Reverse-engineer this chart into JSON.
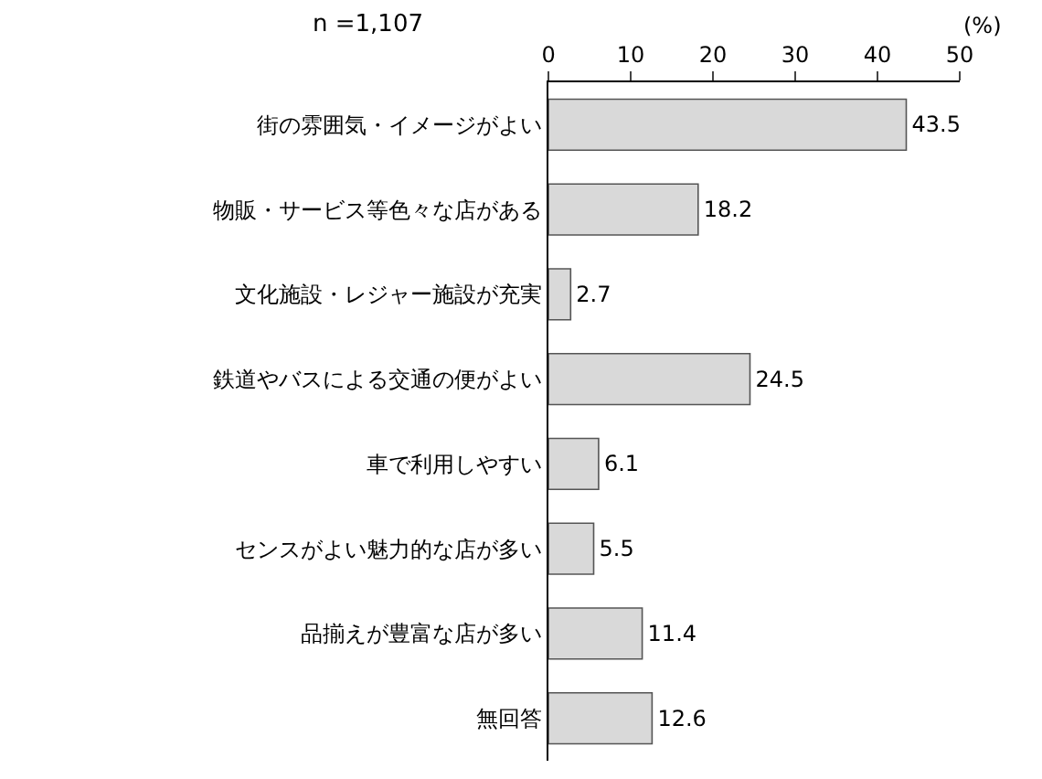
{
  "chart_data": {
    "type": "bar",
    "orientation": "horizontal",
    "xlabel": "(%)",
    "annotations": [
      "n =1,107"
    ],
    "categories": [
      "街の雰囲気・イメージがよい",
      "物販・サービス等色々な店がある",
      "文化施設・レジャー施設が充実",
      "鉄道やバスによる交通の便がよい",
      "車で利用しやすい",
      "センスがよい魅力的な店が多い",
      "品揃えが豊富な店が多い",
      "無回答"
    ],
    "values": [
      43.5,
      18.2,
      2.7,
      24.5,
      6.1,
      5.5,
      11.4,
      12.6
    ],
    "color": "#d9d9d9",
    "data_labels": true,
    "xlim": [
      0,
      50
    ],
    "xticks": [
      0,
      10,
      20,
      30,
      40,
      50
    ],
    "legend": false
  }
}
